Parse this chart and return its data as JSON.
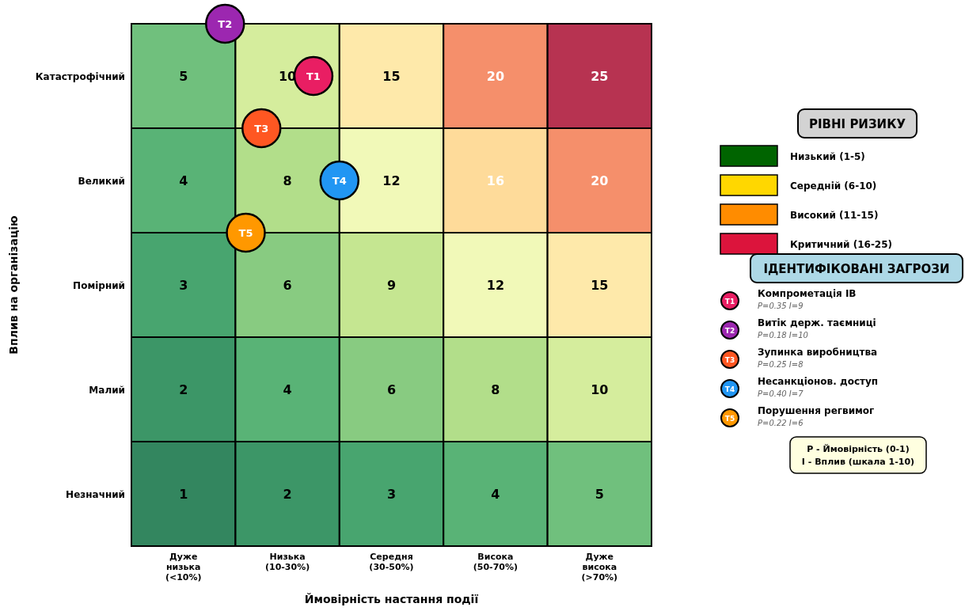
{
  "chart_data": {
    "type": "heatmap",
    "xlabel": "Ймовірність настання події",
    "ylabel": "Вплив на організацію",
    "categories": [
      "Дуже\nнизька\n(<10%)",
      "Низька\n(10-30%)",
      "Середня\n(30-50%)",
      "Висока\n(50-70%)",
      "Дуже\nвисока\n(>70%)"
    ],
    "y_categories": [
      "Катастрофічний",
      "Великий",
      "Помірний",
      "Малий",
      "Незначний"
    ],
    "cells": [
      [
        5,
        10,
        15,
        20,
        25
      ],
      [
        4,
        8,
        12,
        16,
        20
      ],
      [
        3,
        6,
        9,
        12,
        15
      ],
      [
        2,
        4,
        6,
        8,
        10
      ],
      [
        1,
        2,
        3,
        4,
        5
      ]
    ],
    "data_labels": true,
    "legend_title": "ІДЕНТИФІКОВАНІ ЗАГРОЗИ",
    "annotations": [
      "РІВНІ РИЗИКУ",
      "Низький (1-5)",
      "Середній (6-10)",
      "Високий (11-15)",
      "Критичний (16-25)",
      "P=0.35  I=9",
      "P=0.18  I=10",
      "P=0.25  I=8",
      "P=0.40  I=7",
      "P=0.22  I=6",
      "P - Ймовірність (0-1)",
      "I - Вплив (шкала 1-10)",
      "T1",
      "T2",
      "T3",
      "T4",
      "T5",
      "Компрометація ІВ",
      "Витік держ. таємниці",
      "Зупинка виробництва",
      "Несанкціонов. доступ",
      "Порушення регвимог"
    ]
  }
}
